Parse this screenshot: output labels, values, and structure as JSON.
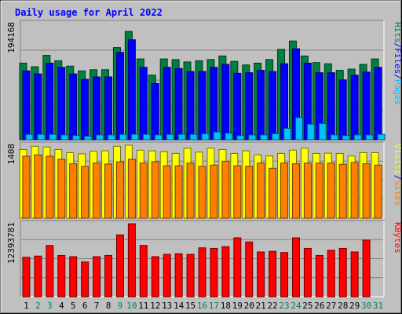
{
  "chart_data": {
    "type": "bar",
    "title": "Daily usage for April 2022",
    "colors": {
      "background": "#c0c0c0",
      "title": "#0000ff",
      "hits": "#008040",
      "files": "#0000ff",
      "pages": "#00c0ff",
      "visits": "#ffff00",
      "sites": "#ff8000",
      "kbytes": "#ff0000",
      "weekend_day": "#00805c"
    },
    "categories": [
      "1",
      "2",
      "3",
      "4",
      "5",
      "6",
      "7",
      "8",
      "9",
      "10",
      "11",
      "12",
      "13",
      "14",
      "15",
      "16",
      "17",
      "18",
      "19",
      "20",
      "21",
      "22",
      "23",
      "24",
      "25",
      "26",
      "27",
      "28",
      "29",
      "30",
      "31"
    ],
    "weekend_days": [
      "2",
      "3",
      "9",
      "10",
      "16",
      "17",
      "23",
      "24",
      "30",
      "31"
    ],
    "panels": [
      {
        "name": "hits-files-pages",
        "ymax_label": "194168",
        "ylim": [
          0,
          194168
        ],
        "legend": [
          {
            "label": "Hits",
            "color_key": "hits"
          },
          {
            "label": "/",
            "color_key": "title"
          },
          {
            "label": "Files",
            "color_key": "files"
          },
          {
            "label": "/",
            "color_key": "title"
          },
          {
            "label": "Pages",
            "color_key": "pages"
          }
        ],
        "series": [
          {
            "name": "Hits",
            "color_key": "hits",
            "offset": -4,
            "values": [
              128000,
              122000,
              141000,
              132000,
              123000,
              115000,
              117000,
              117000,
              154000,
              181000,
              135000,
              108000,
              135000,
              134000,
              130000,
              132000,
              134000,
              140000,
              131000,
              125000,
              128000,
              134000,
              151000,
              165000,
              140000,
              129000,
              127000,
              116000,
              118000,
              126000,
              135000
            ]
          },
          {
            "name": "Files",
            "color_key": "files",
            "offset": 0,
            "values": [
              115000,
              110000,
              128000,
              121000,
              110000,
              101000,
              105000,
              105000,
              146000,
              167000,
              121000,
              94000,
              121000,
              119000,
              114000,
              114000,
              121000,
              126000,
              111000,
              112000,
              116000,
              114000,
              127000,
              152000,
              128000,
              112000,
              112000,
              100000,
              108000,
              113000,
              121000
            ]
          },
          {
            "name": "Pages",
            "color_key": "pages",
            "offset": 4,
            "values": [
              9000,
              9000,
              9000,
              8000,
              7000,
              6000,
              8000,
              8000,
              9000,
              9000,
              9000,
              8000,
              9000,
              9000,
              9000,
              10000,
              13000,
              11000,
              7000,
              8000,
              8000,
              10000,
              19000,
              37000,
              26000,
              27000,
              8000,
              7000,
              8000,
              8000,
              9000
            ]
          }
        ]
      },
      {
        "name": "visits-sites",
        "ymax_label": "1408",
        "ylim": [
          0,
          1408
        ],
        "legend": [
          {
            "label": "Visits",
            "color_key": "visits"
          },
          {
            "label": "/",
            "color_key": "title"
          },
          {
            "label": "Sites",
            "color_key": "sites"
          }
        ],
        "series": [
          {
            "name": "Visits",
            "color_key": "visits",
            "offset": -4,
            "values": [
              1325,
              1388,
              1375,
              1325,
              1265,
              1242,
              1292,
              1300,
              1388,
              1408,
              1313,
              1300,
              1283,
              1250,
              1350,
              1275,
              1350,
              1325,
              1250,
              1300,
              1223,
              1200,
              1250,
              1313,
              1350,
              1250,
              1255,
              1250,
              1200,
              1265,
              1265
            ]
          },
          {
            "name": "Sites",
            "color_key": "sites",
            "offset": 0,
            "values": [
              1196,
              1221,
              1196,
              1138,
              1050,
              1000,
              1063,
              1045,
              1088,
              1138,
              1063,
              1090,
              1010,
              1010,
              1063,
              1000,
              1025,
              1100,
              1012,
              1002,
              1063,
              964,
              1063,
              1050,
              1063,
              1063,
              1063,
              1041,
              1075,
              1050,
              1025
            ]
          }
        ]
      },
      {
        "name": "kbytes",
        "ymax_label": "12393781",
        "ylim": [
          0,
          12393781
        ],
        "legend": [
          {
            "label": "KBytes",
            "color_key": "kbytes"
          }
        ],
        "series": [
          {
            "name": "KBytes",
            "color_key": "kbytes",
            "offset": 0,
            "values": [
              6700000,
              6900000,
              8700000,
              7000000,
              6800000,
              5900000,
              6800000,
              7000000,
              10500000,
              12393781,
              8700000,
              6800000,
              7200000,
              7300000,
              7200000,
              8300000,
              8200000,
              8500000,
              10000000,
              9300000,
              7600000,
              7700000,
              7500000,
              10000000,
              8200000,
              7000000,
              7900000,
              8200000,
              7600000,
              9600000,
              0
            ]
          }
        ]
      }
    ]
  }
}
